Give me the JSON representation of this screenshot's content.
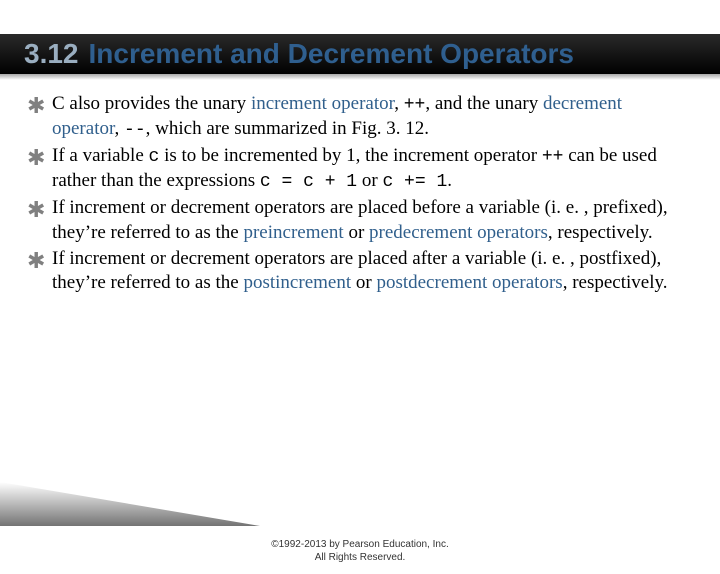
{
  "nav": {
    "prev_color": "#c02020",
    "next_color": "#208040"
  },
  "title": {
    "number": "3.12",
    "text": "Increment and Decrement Operators"
  },
  "bullets": [
    {
      "parts": [
        {
          "t": "C also provides the unary "
        },
        {
          "t": "increment operator",
          "link": true
        },
        {
          "t": ", "
        },
        {
          "t": "++",
          "mono": true
        },
        {
          "t": ", and the unary "
        },
        {
          "t": "decrement operator",
          "link": true
        },
        {
          "t": ", "
        },
        {
          "t": "--",
          "mono": true
        },
        {
          "t": ", which are summarized in Fig. 3. 12."
        }
      ]
    },
    {
      "parts": [
        {
          "t": "If a variable "
        },
        {
          "t": "c",
          "mono": true
        },
        {
          "t": " is to be incremented by 1, the increment operator "
        },
        {
          "t": "++",
          "mono": true
        },
        {
          "t": " can be used rather than the expressions "
        },
        {
          "t": "c = c + 1",
          "mono": true
        },
        {
          "t": " or "
        },
        {
          "t": "c += 1",
          "mono": true
        },
        {
          "t": "."
        }
      ]
    },
    {
      "parts": [
        {
          "t": "If increment or decrement operators are placed before a variable (i. e. , prefixed), they’re referred to as the "
        },
        {
          "t": "preincrement",
          "link": true
        },
        {
          "t": " or "
        },
        {
          "t": "predecrement operators",
          "link": true
        },
        {
          "t": ", respectively."
        }
      ]
    },
    {
      "parts": [
        {
          "t": "If increment or decrement operators are placed after a variable (i. e. , postfixed), they’re referred to as the "
        },
        {
          "t": "postincrement",
          "link": true
        },
        {
          "t": " or "
        },
        {
          "t": "postdecrement operators",
          "link": true
        },
        {
          "t": ", respectively."
        }
      ]
    }
  ],
  "copyright": {
    "line1": "©1992-2013 by Pearson Education, Inc.",
    "line2": "All Rights Reserved."
  },
  "colors": {
    "link": "#305f8c",
    "title_num": "#9aaec0",
    "title_main": "#2f5f8f",
    "background": "#ffffff"
  }
}
